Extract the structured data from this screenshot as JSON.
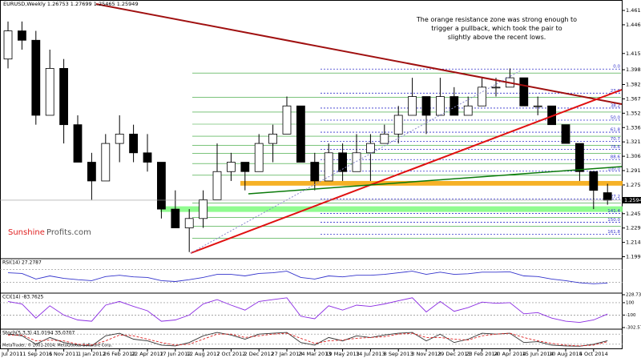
{
  "chart_data": {
    "type": "candlestick",
    "title": "EURUSD,Weekly  1.26753 1.27699 1.25465 1.25949",
    "annotation": "The orange resistance zone was strong enough to trigger a pullback, which took the pair to slightly above the recent lows.",
    "logo": [
      "Sunshine",
      "Profits.com"
    ],
    "copyright": "MetaTrader, © 2001-2014, MetaQuotes Software Corp.",
    "categories": [
      "17 Jul 2011",
      null,
      "11 Sep 2011",
      null,
      "6 Nov 2011",
      null,
      "1 Jan 2012",
      null,
      "26 Feb 2012",
      null,
      "22 Apr 2012",
      null,
      "17 Jun 2012",
      null,
      "12 Aug 2012",
      null,
      "7 Oct 2012",
      null,
      "2 Dec 2012",
      null,
      "27 Jan 2013",
      null,
      "24 Mar 2013",
      null,
      "19 May 2013",
      null,
      "14 Jul 2013",
      null,
      "8 Sep 2013",
      null,
      "3 Nov 2013",
      null,
      "29 Dec 2013",
      null,
      "23 Feb 2014",
      null,
      "20 Apr 2014",
      null,
      "15 Jun 2014",
      null,
      "10 Aug 2014",
      null,
      "5 Oct 2014",
      null
    ],
    "open": [
      1.41,
      1.44,
      1.43,
      1.35,
      1.4,
      1.34,
      1.3,
      1.28,
      1.32,
      1.33,
      1.31,
      1.3,
      1.25,
      1.23,
      1.24,
      1.26,
      1.29,
      1.3,
      1.29,
      1.32,
      1.33,
      1.36,
      1.3,
      1.28,
      1.31,
      1.29,
      1.31,
      1.32,
      1.33,
      1.35,
      1.37,
      1.35,
      1.37,
      1.35,
      1.36,
      1.38,
      1.38,
      1.39,
      1.36,
      1.36,
      1.34,
      1.32,
      1.29,
      1.26753
    ],
    "high": [
      1.45,
      1.45,
      1.44,
      1.42,
      1.41,
      1.35,
      1.31,
      1.33,
      1.35,
      1.34,
      1.33,
      1.3,
      1.27,
      1.25,
      1.27,
      1.32,
      1.31,
      1.3,
      1.33,
      1.34,
      1.37,
      1.36,
      1.31,
      1.32,
      1.32,
      1.33,
      1.33,
      1.34,
      1.36,
      1.39,
      1.37,
      1.39,
      1.38,
      1.37,
      1.39,
      1.39,
      1.4,
      1.39,
      1.37,
      1.36,
      1.34,
      1.32,
      1.29,
      1.27699
    ],
    "low": [
      1.4,
      1.42,
      1.34,
      1.35,
      1.32,
      1.3,
      1.26,
      1.28,
      1.3,
      1.3,
      1.29,
      1.24,
      1.23,
      1.2042,
      1.23,
      1.26,
      1.28,
      1.27,
      1.29,
      1.3,
      1.33,
      1.3,
      1.27,
      1.28,
      1.28,
      1.29,
      1.28,
      1.32,
      1.32,
      1.35,
      1.33,
      1.35,
      1.35,
      1.35,
      1.36,
      1.37,
      1.38,
      1.36,
      1.35,
      1.34,
      1.32,
      1.28,
      1.25,
      1.25465
    ],
    "close": [
      1.44,
      1.43,
      1.35,
      1.4,
      1.34,
      1.3,
      1.28,
      1.32,
      1.33,
      1.31,
      1.3,
      1.25,
      1.23,
      1.24,
      1.26,
      1.29,
      1.3,
      1.29,
      1.32,
      1.33,
      1.36,
      1.3,
      1.28,
      1.31,
      1.29,
      1.31,
      1.32,
      1.33,
      1.35,
      1.37,
      1.35,
      1.37,
      1.35,
      1.36,
      1.38,
      1.38,
      1.39,
      1.36,
      1.36,
      1.34,
      1.32,
      1.29,
      1.27,
      1.25949
    ],
    "ylim": [
      1.198,
      1.4695
    ],
    "yticks": [
      {
        "value": 1.4618,
        "label": "1.46180"
      },
      {
        "value": 1.4465,
        "label": "1.44650"
      },
      {
        "value": 1.4159,
        "label": "1.41590"
      },
      {
        "value": 1.3986,
        "label": "1.39860"
      },
      1.38285,
      {
        "value": 1.3675,
        "label": "1.36750"
      },
      1.35225,
      1.33695,
      1.32165,
      1.30635,
      1.29105,
      1.27575,
      1.24515,
      1.22985,
      1.21455,
      1.19925
    ],
    "last_price": 1.25949,
    "resistance_zone": {
      "range": [
        1.275,
        1.28
      ],
      "color": "#f5a300"
    },
    "support_zone": {
      "range": [
        1.247,
        1.253
      ],
      "color": "#7cfc7c"
    },
    "fibonacci": {
      "from": 1.3993,
      "to": 1.2904,
      "color": "#3333cc",
      "levels": [
        {
          "value": 0,
          "label": "0.0"
        },
        23.6,
        38.2,
        {
          "value": 50,
          "label": "50.0"
        },
        61.8,
        70.7,
        78.6,
        88.6,
        {
          "value": 100,
          "label": "100.0"
        },
        127.2,
        141.4,
        {
          "value": 150,
          "label": "150.0"
        },
        161.8
      ]
    },
    "indicators": [
      {
        "label": "RSI(14) 27.2787",
        "ylim": [
          0,
          100
        ],
        "levels": [
          30,
          70
        ],
        "series": [
          {
            "color": "#3333cc",
            "values": [
              60,
              58,
              40,
              50,
              42,
              38,
              35,
              48,
              52,
              47,
              45,
              35,
              32,
              38,
              45,
              55,
              55,
              50,
              58,
              60,
              65,
              45,
              40,
              50,
              47,
              52,
              52,
              55,
              60,
              65,
              55,
              62,
              55,
              57,
              62,
              62,
              63,
              50,
              48,
              40,
              35,
              28,
              25,
              27.2787
            ]
          }
        ]
      },
      {
        "label": "CCI(14) -83.7625",
        "ylim": [
          -302.571,
          228.733
        ],
        "yticks": [
          228.733,
          100,
          -100,
          {
            "value": -302.571,
            "label": "-302.5710"
          }
        ],
        "levels": [
          100,
          -100
        ],
        "series": [
          {
            "color": "#8a2be2",
            "values": [
              120,
              80,
              -150,
              50,
              -100,
              -180,
              -200,
              60,
              120,
              40,
              -30,
              -200,
              -180,
              -100,
              80,
              150,
              60,
              -20,
              120,
              150,
              180,
              -120,
              -160,
              50,
              -20,
              60,
              40,
              80,
              130,
              180,
              -50,
              120,
              -40,
              20,
              110,
              90,
              100,
              -80,
              -60,
              -150,
              -200,
              -220,
              -180,
              -83.7625
            ]
          }
        ]
      },
      {
        "label": "Stoch(5,3,3) 41.0194 35.0707",
        "ylim": [
          0,
          100
        ],
        "levels": [
          80,
          20
        ],
        "series": [
          {
            "color": "#333333",
            "values": [
              80,
              70,
              20,
              60,
              30,
              15,
              10,
              70,
              85,
              50,
              40,
              15,
              10,
              30,
              70,
              90,
              75,
              50,
              80,
              85,
              90,
              30,
              15,
              60,
              40,
              70,
              60,
              75,
              85,
              90,
              40,
              80,
              30,
              50,
              85,
              80,
              85,
              30,
              35,
              15,
              10,
              8,
              20,
              41.0194
            ]
          },
          {
            "color": "#dd2222",
            "values": [
              75,
              75,
              40,
              45,
              40,
              20,
              15,
              40,
              75,
              70,
              50,
              30,
              15,
              20,
              50,
              80,
              80,
              60,
              70,
              80,
              85,
              55,
              25,
              40,
              45,
              55,
              60,
              65,
              80,
              85,
              60,
              60,
              50,
              45,
              70,
              80,
              85,
              60,
              40,
              25,
              15,
              10,
              15,
              35.0707
            ]
          }
        ]
      }
    ]
  }
}
